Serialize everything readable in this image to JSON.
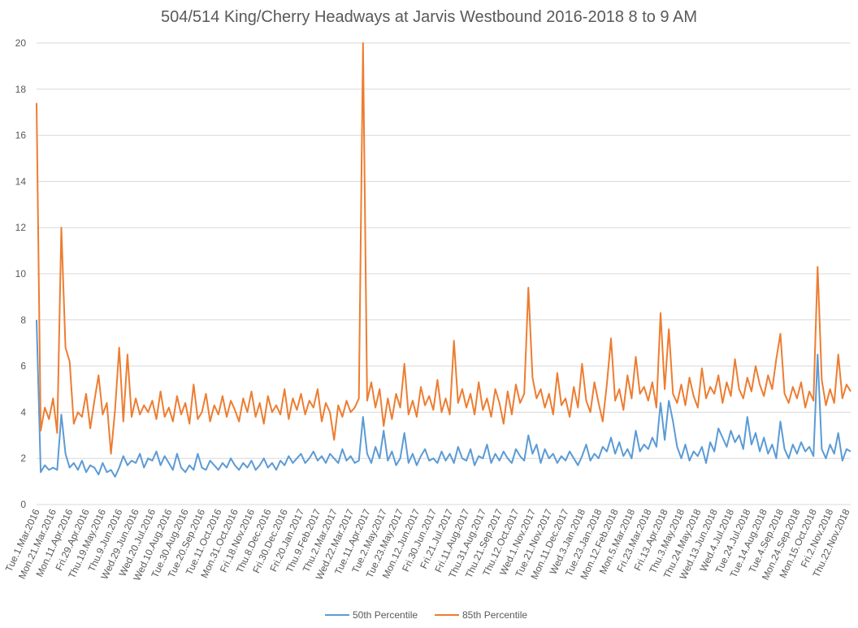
{
  "chart_data": {
    "type": "line",
    "title": "504/514 King/Cherry Headways at Jarvis Westbound 2016-2018 8 to 9 AM",
    "categories": [
      "Tue.1.Mar.2016",
      null,
      null,
      null,
      "Mon.21.Mar.2016",
      null,
      null,
      null,
      "Mon.11.Apr.2016",
      null,
      null,
      null,
      "Fri.29.Apr.2016",
      null,
      null,
      null,
      "Thu.19.May.2016",
      null,
      null,
      null,
      "Thu.9.Jun.2016",
      null,
      null,
      null,
      "Wed.29.Jun.2016",
      null,
      null,
      null,
      "Wed.20.Jul.2016",
      null,
      null,
      null,
      "Wed.10.Aug.2016",
      null,
      null,
      null,
      "Tue.30.Aug.2016",
      null,
      null,
      null,
      "Tue.20.Sep.2016",
      null,
      null,
      null,
      "Tue.11.Oct.2016",
      null,
      null,
      null,
      "Mon.31.Oct.2016",
      null,
      null,
      null,
      "Fri.18.Nov.2016",
      null,
      null,
      null,
      "Thu.8.Dec.2016",
      null,
      null,
      null,
      "Fri.30.Dec.2016",
      null,
      null,
      null,
      "Fri.20.Jan.2017",
      null,
      null,
      null,
      "Thu.9.Feb.2017",
      null,
      null,
      null,
      "Thu.2.Mar.2017",
      null,
      null,
      null,
      "Wed.22.Mar.2017",
      null,
      null,
      null,
      "Tue.11.Apr.2017",
      null,
      null,
      null,
      "Tue.2.May.2017",
      null,
      null,
      null,
      "Tue.23.May.2017",
      null,
      null,
      null,
      "Mon.12.Jun.2017",
      null,
      null,
      null,
      "Fri.30.Jun.2017",
      null,
      null,
      null,
      "Fri.21.Jul.2017",
      null,
      null,
      null,
      "Fri.11.Aug.2017",
      null,
      null,
      null,
      "Thu.31.Aug.2017",
      null,
      null,
      null,
      "Thu.21.Sep.2017",
      null,
      null,
      null,
      "Thu.12.Oct.2017",
      null,
      null,
      null,
      "Wed.1.Nov.2017",
      null,
      null,
      null,
      "Tue.21.Nov.2017",
      null,
      null,
      null,
      "Mon.11.Dec.2017",
      null,
      null,
      null,
      "Wed.3.Jan.2018",
      null,
      null,
      null,
      "Tue.23.Jan.2018",
      null,
      null,
      null,
      "Mon.12.Feb.2018",
      null,
      null,
      null,
      "Mon.5.Mar.2018",
      null,
      null,
      null,
      "Fri.23.Mar.2018",
      null,
      null,
      null,
      "Fri.13.Apr.2018",
      null,
      null,
      null,
      "Thu.3.May.2018",
      null,
      null,
      null,
      "Thu.24.May.2018",
      null,
      null,
      null,
      "Wed.13.Jun.2018",
      null,
      null,
      null,
      "Wed.4.Jul.2018",
      null,
      null,
      null,
      "Tue.24.Jul.2018",
      null,
      null,
      null,
      "Tue.14.Aug.2018",
      null,
      null,
      null,
      "Tue.4.Sep.2018",
      null,
      null,
      null,
      "Mon.24.Sep.2018",
      null,
      null,
      null,
      "Mon.15.Oct.2018",
      null,
      null,
      null,
      "Fri.2.Nov.2018",
      null,
      null,
      null,
      "Thu.22.Nov.2018",
      null
    ],
    "series": [
      {
        "name": "50th Percentile",
        "color": "#5b9bd5",
        "values": [
          8,
          1.4,
          1.7,
          1.5,
          1.6,
          1.5,
          3.9,
          2.2,
          1.6,
          1.8,
          1.5,
          1.9,
          1.4,
          1.7,
          1.6,
          1.3,
          1.8,
          1.4,
          1.5,
          1.2,
          1.6,
          2.1,
          1.7,
          1.9,
          1.8,
          2.2,
          1.6,
          2.0,
          1.9,
          2.3,
          1.7,
          2.1,
          1.8,
          1.5,
          2.2,
          1.6,
          1.4,
          1.7,
          1.5,
          2.2,
          1.6,
          1.5,
          1.9,
          1.7,
          1.5,
          1.8,
          1.6,
          2.0,
          1.7,
          1.5,
          1.8,
          1.6,
          1.9,
          1.5,
          1.7,
          2.0,
          1.6,
          1.8,
          1.5,
          1.9,
          1.7,
          2.1,
          1.8,
          2.0,
          2.2,
          1.8,
          2.0,
          2.3,
          1.9,
          2.1,
          1.8,
          2.2,
          2.0,
          1.8,
          2.4,
          1.9,
          2.1,
          1.8,
          1.9,
          3.8,
          2.2,
          1.8,
          2.5,
          2.0,
          3.2,
          1.9,
          2.3,
          1.7,
          2.0,
          3.1,
          1.8,
          2.2,
          1.7,
          2.1,
          2.4,
          1.9,
          2.0,
          1.8,
          2.3,
          1.9,
          2.2,
          1.8,
          2.5,
          2.0,
          1.9,
          2.4,
          1.7,
          2.1,
          2.0,
          2.6,
          1.8,
          2.2,
          1.9,
          2.3,
          2.0,
          1.8,
          2.4,
          2.1,
          1.9,
          3.0,
          2.2,
          2.6,
          1.8,
          2.4,
          2.0,
          2.2,
          1.8,
          2.1,
          1.9,
          2.3,
          2.0,
          1.7,
          2.1,
          2.6,
          1.9,
          2.2,
          2.0,
          2.5,
          2.3,
          2.9,
          2.2,
          2.7,
          2.1,
          2.4,
          2.0,
          3.2,
          2.3,
          2.6,
          2.4,
          2.9,
          2.5,
          4.4,
          2.8,
          4.5,
          3.6,
          2.5,
          2.0,
          2.6,
          1.9,
          2.3,
          2.1,
          2.5,
          1.8,
          2.7,
          2.3,
          3.3,
          2.9,
          2.5,
          3.2,
          2.7,
          3.0,
          2.4,
          3.8,
          2.6,
          3.1,
          2.3,
          2.9,
          2.2,
          2.6,
          2.0,
          3.6,
          2.4,
          2.0,
          2.6,
          2.2,
          2.7,
          2.3,
          2.5,
          2.1,
          6.5,
          2.4,
          2.0,
          2.6,
          2.2,
          3.1,
          1.9,
          2.4,
          2.3
        ]
      },
      {
        "name": "85th Percentile",
        "color": "#ed7d31",
        "values": [
          17.4,
          3.2,
          4.2,
          3.7,
          4.6,
          3.1,
          12.0,
          6.8,
          6.2,
          3.5,
          4.0,
          3.8,
          4.8,
          3.3,
          4.5,
          5.6,
          3.9,
          4.4,
          2.2,
          4.1,
          6.8,
          3.6,
          6.5,
          3.8,
          4.6,
          3.9,
          4.3,
          4.0,
          4.5,
          3.7,
          4.9,
          3.8,
          4.2,
          3.6,
          4.7,
          3.9,
          4.4,
          3.5,
          5.2,
          3.7,
          4.0,
          4.8,
          3.6,
          4.3,
          3.9,
          4.7,
          3.8,
          4.5,
          4.1,
          3.6,
          4.6,
          4.0,
          4.9,
          3.8,
          4.4,
          3.5,
          4.7,
          4.0,
          4.3,
          3.9,
          5.0,
          3.7,
          4.6,
          4.1,
          4.8,
          3.9,
          4.5,
          4.2,
          5.0,
          3.6,
          4.4,
          4.0,
          2.8,
          4.3,
          3.8,
          4.5,
          4.0,
          4.2,
          4.6,
          20,
          4.5,
          5.3,
          4.2,
          5.0,
          3.4,
          4.6,
          3.7,
          4.8,
          4.2,
          6.1,
          3.9,
          4.5,
          3.8,
          5.1,
          4.3,
          4.7,
          4.1,
          5.4,
          4.0,
          4.6,
          3.9,
          7.1,
          4.4,
          5.0,
          4.2,
          4.8,
          3.9,
          5.3,
          4.1,
          4.6,
          3.8,
          5.0,
          4.4,
          3.5,
          4.9,
          3.9,
          5.2,
          4.4,
          4.8,
          9.4,
          5.5,
          4.6,
          5.0,
          4.2,
          4.8,
          3.9,
          5.7,
          4.3,
          4.6,
          3.8,
          5.1,
          4.2,
          6.1,
          4.5,
          4.0,
          5.3,
          4.4,
          3.6,
          5.2,
          7.2,
          4.5,
          5.0,
          4.1,
          5.6,
          4.6,
          6.4,
          4.8,
          5.1,
          4.5,
          5.3,
          4.2,
          8.3,
          5.0,
          7.6,
          4.8,
          4.4,
          5.2,
          4.3,
          5.5,
          4.7,
          4.2,
          5.9,
          4.6,
          5.1,
          4.8,
          5.6,
          4.4,
          5.3,
          4.7,
          6.3,
          5.0,
          4.6,
          5.5,
          4.9,
          6.0,
          5.2,
          4.7,
          5.6,
          5.0,
          6.3,
          7.4,
          4.8,
          4.4,
          5.1,
          4.6,
          5.3,
          4.2,
          4.9,
          4.5,
          10.3,
          5.4,
          4.3,
          5.0,
          4.4,
          6.5,
          4.6,
          5.2,
          4.9
        ]
      }
    ],
    "ylim": [
      0,
      20
    ],
    "yticks": [
      0,
      2,
      4,
      6,
      8,
      10,
      12,
      14,
      16,
      18,
      20
    ],
    "grid": true,
    "legend": "bottom"
  }
}
